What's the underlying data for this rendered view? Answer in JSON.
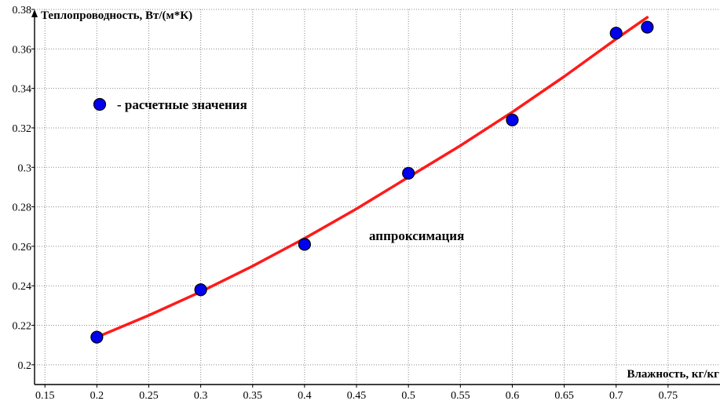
{
  "chart_data": {
    "type": "scatter",
    "ylabel": "Теплопроводность, Вт/(м*К)",
    "xlabel": "Влажность, кг/кг",
    "xlim": [
      0.14,
      0.8
    ],
    "ylim": [
      0.19,
      0.38
    ],
    "x_ticks": [
      "0.15",
      "0.2",
      "0.25",
      "0.3",
      "0.35",
      "0.4",
      "0.45",
      "0.5",
      "0.55",
      "0.6",
      "0.65",
      "0.7",
      "0.75"
    ],
    "y_ticks": [
      "0.2",
      "0.22",
      "0.24",
      "0.26",
      "0.28",
      "0.3",
      "0.32",
      "0.34",
      "0.36",
      "0.38"
    ],
    "grid": true,
    "series": [
      {
        "name": "- расчетные значения",
        "kind": "points",
        "color": "#0000ee",
        "x": [
          0.2,
          0.3,
          0.4,
          0.5,
          0.6,
          0.7,
          0.73
        ],
        "y": [
          0.214,
          0.238,
          0.261,
          0.297,
          0.324,
          0.368,
          0.371
        ]
      },
      {
        "name": "аппроксимация",
        "kind": "line",
        "color": "#ff1a1a",
        "x": [
          0.2,
          0.25,
          0.3,
          0.35,
          0.4,
          0.45,
          0.5,
          0.55,
          0.6,
          0.65,
          0.7,
          0.73
        ],
        "y": [
          0.214,
          0.225,
          0.237,
          0.25,
          0.264,
          0.279,
          0.295,
          0.311,
          0.328,
          0.346,
          0.365,
          0.376
        ]
      }
    ],
    "annotations": {
      "legend_text": "- расчетные значения",
      "curve_text": "аппроксимация"
    }
  }
}
